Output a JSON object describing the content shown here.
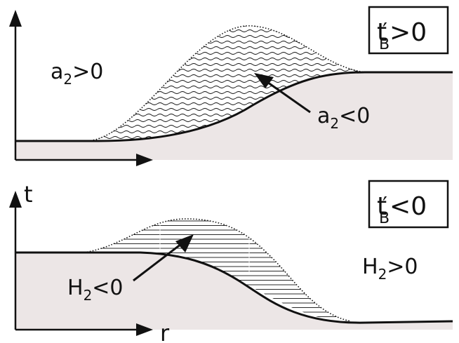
{
  "top_panel": {
    "box_label": {
      "main": "t",
      "prime": "′",
      "sub": "B",
      "rel": ">0"
    },
    "left_label": {
      "main": "a",
      "sub": "2",
      "rel": ">0"
    },
    "arrow_label": {
      "main": "a",
      "sub": "2",
      "rel": "<0"
    }
  },
  "bottom_panel": {
    "box_label": {
      "main": "t",
      "prime": "′",
      "sub": "B",
      "rel": "<0"
    },
    "axis_y_label": "t",
    "axis_x_label": "r",
    "right_label": {
      "main": "H",
      "sub": "2",
      "rel": ">0"
    },
    "arrow_label": {
      "main": "H",
      "sub": "2",
      "rel": "<0"
    }
  },
  "colors": {
    "region_fill": "#ece6e6",
    "ink": "#111111"
  }
}
